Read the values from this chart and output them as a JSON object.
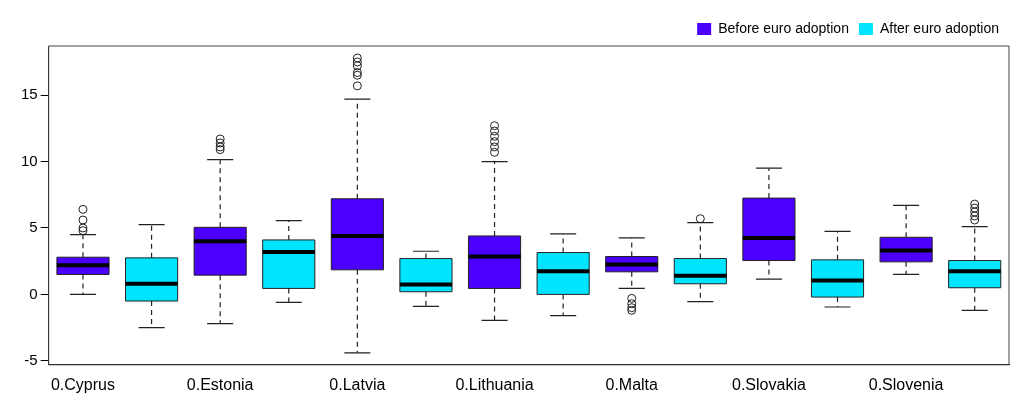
{
  "chart_data": {
    "type": "box",
    "categories": [
      "0.Cyprus",
      null,
      "0.Estonia",
      null,
      "0.Latvia",
      null,
      "0.Lithuania",
      null,
      "0.Malta",
      null,
      "0.Slovakia",
      null,
      "0.Slovenia",
      null
    ],
    "ylim": [
      -5.3,
      18.7
    ],
    "yticks": [
      -5,
      0,
      5,
      10,
      15
    ],
    "legend": "top right",
    "grid": false,
    "series": [
      {
        "name": "Before euro adoption",
        "color": "#4b00ff",
        "boxes": [
          {
            "low": 0,
            "q1": 1.5,
            "median": 2.2,
            "q3": 2.8,
            "high": 4.5,
            "outliers": [
              4.8,
              5.0,
              5.6,
              6.4
            ]
          },
          null,
          {
            "low": -2.2,
            "q1": 1.45,
            "median": 4.0,
            "q3": 5.05,
            "high": 10.15,
            "outliers": [
              10.9,
              11.1,
              11.4,
              11.7
            ]
          },
          null,
          {
            "low": -4.4,
            "q1": 1.85,
            "median": 4.4,
            "q3": 7.2,
            "high": 14.7,
            "outliers": [
              15.7,
              16.5,
              16.7,
              17.2,
              17.5,
              17.8
            ]
          },
          null,
          {
            "low": -1.95,
            "q1": 0.45,
            "median": 2.85,
            "q3": 4.4,
            "high": 10.0,
            "outliers": [
              10.7,
              11.1,
              11.5,
              11.9,
              12.3,
              12.7
            ]
          },
          null,
          {
            "low": 0.45,
            "q1": 1.7,
            "median": 2.25,
            "q3": 2.85,
            "high": 4.25,
            "outliers": [
              -0.3,
              -0.7,
              -1.0,
              -1.2
            ]
          },
          null,
          {
            "low": 1.15,
            "q1": 2.55,
            "median": 4.25,
            "q3": 7.25,
            "high": 9.5
          },
          null,
          {
            "low": 1.5,
            "q1": 2.45,
            "median": 3.3,
            "q3": 4.3,
            "high": 6.7
          },
          null
        ]
      },
      {
        "name": "After euro adoption",
        "color": "#00e5ff",
        "boxes": [
          null,
          {
            "low": -2.5,
            "q1": -0.5,
            "median": 0.8,
            "q3": 2.75,
            "high": 5.25
          },
          null,
          {
            "low": -0.6,
            "q1": 0.45,
            "median": 3.2,
            "q3": 4.1,
            "high": 5.55
          },
          null,
          {
            "low": -0.9,
            "q1": 0.2,
            "median": 0.75,
            "q3": 2.7,
            "high": 3.25
          },
          null,
          {
            "low": -1.6,
            "q1": 0,
            "median": 1.75,
            "q3": 3.15,
            "high": 4.55
          },
          null,
          {
            "low": -0.55,
            "q1": 0.8,
            "median": 1.4,
            "q3": 2.7,
            "high": 5.4,
            "outliers": [
              5.7
            ]
          },
          null,
          {
            "low": -0.95,
            "q1": -0.2,
            "median": 1.05,
            "q3": 2.6,
            "high": 4.75
          },
          null,
          {
            "low": -1.2,
            "q1": 0.5,
            "median": 1.75,
            "q3": 2.55,
            "high": 5.1,
            "outliers": [
              5.6,
              5.9,
              6.2,
              6.5,
              6.8
            ]
          }
        ]
      }
    ]
  }
}
